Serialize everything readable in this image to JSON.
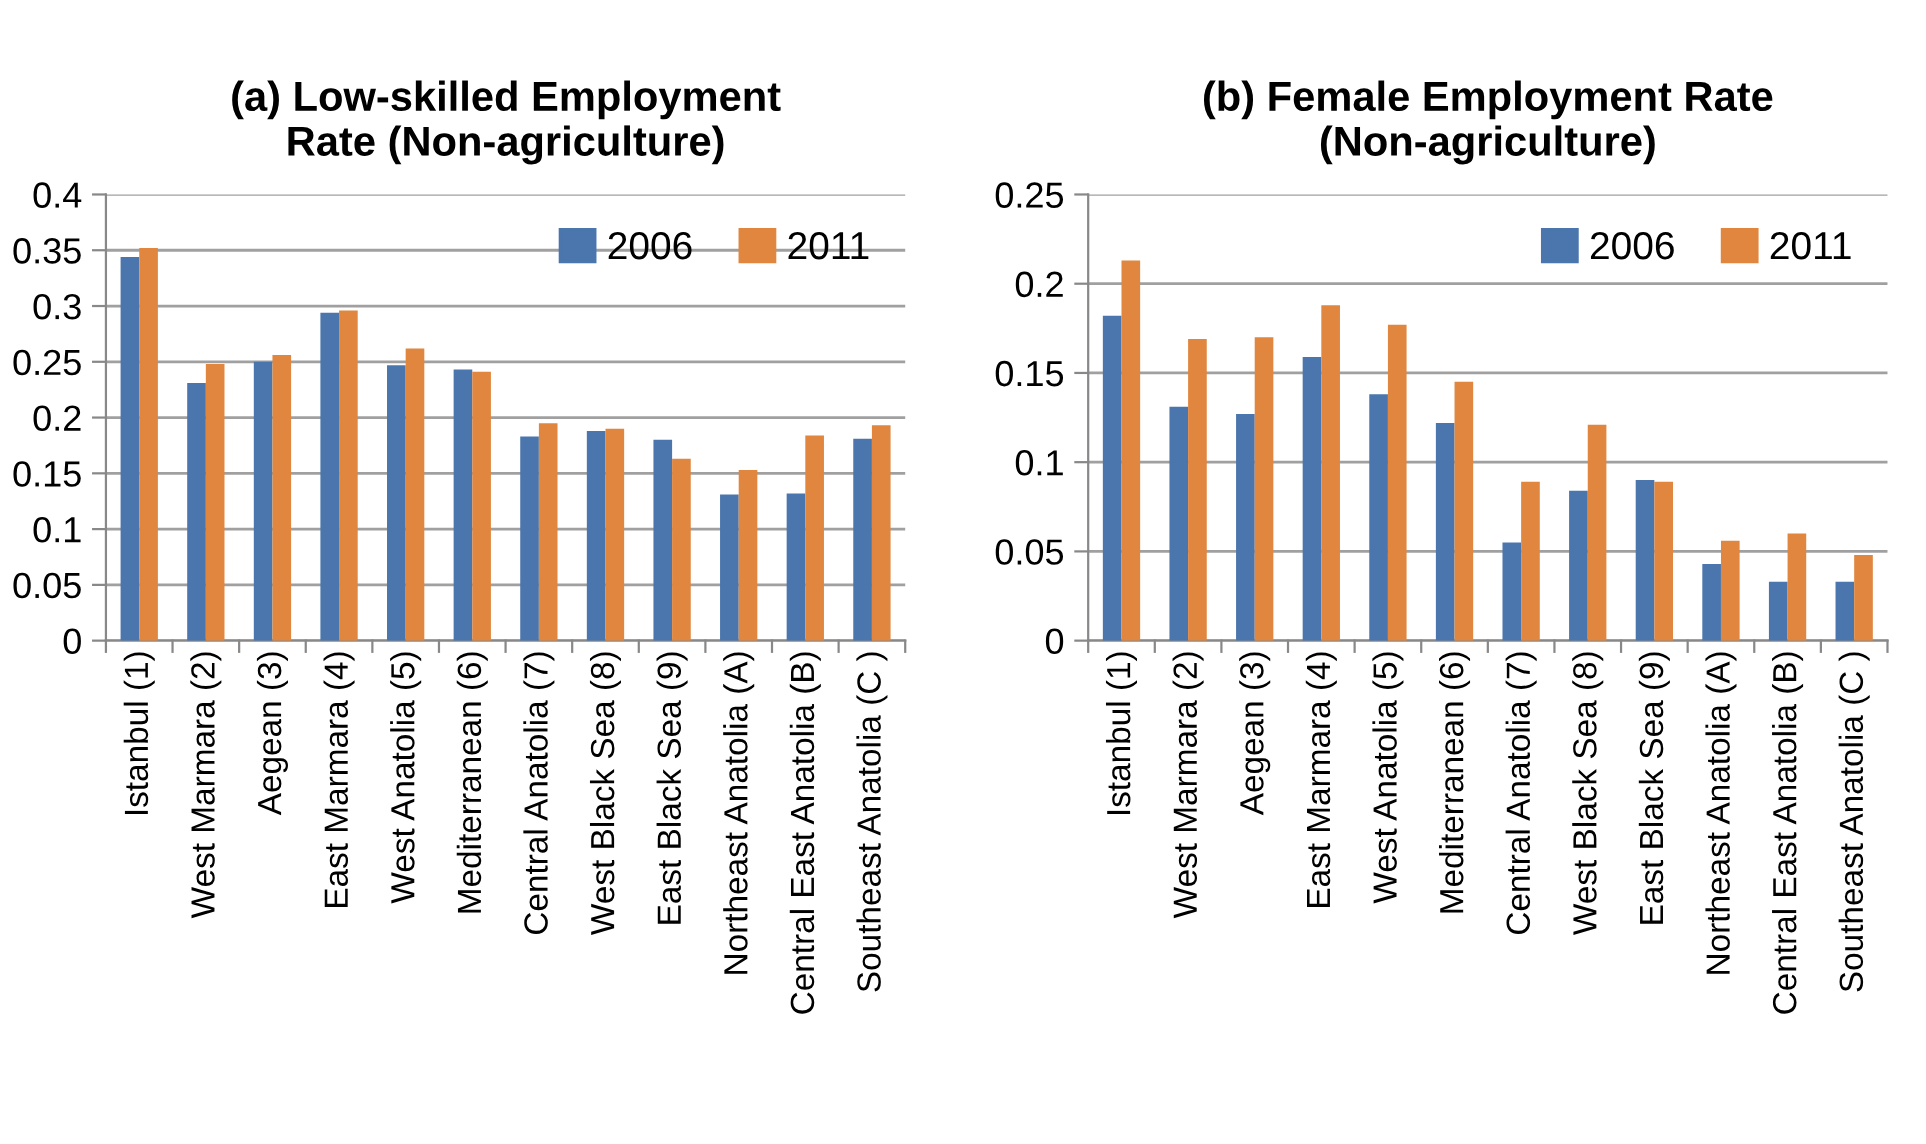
{
  "chart_data": [
    {
      "type": "bar",
      "title": "(a) Low-skilled Employment\nRate (Non-agriculture)",
      "categories": [
        "Istanbul (1)",
        "West Marmara (2)",
        "Aegean (3)",
        "East Marmara (4)",
        "West Anatolia (5)",
        "Mediterranean (6)",
        "Central Anatolia (7)",
        "West Black Sea (8)",
        "East Black Sea (9)",
        "Northeast Anatolia (A)",
        "Central East Anatolia (B)",
        "Southeast Anatolia (C )"
      ],
      "series": [
        {
          "name": "2006",
          "color": "#4a76ad",
          "values": [
            0.344,
            0.231,
            0.25,
            0.294,
            0.247,
            0.243,
            0.183,
            0.188,
            0.18,
            0.131,
            0.132,
            0.181
          ]
        },
        {
          "name": "2011",
          "color": "#e0863f",
          "values": [
            0.352,
            0.248,
            0.256,
            0.296,
            0.262,
            0.241,
            0.195,
            0.19,
            0.163,
            0.153,
            0.184,
            0.193
          ]
        }
      ],
      "ylim": [
        0,
        0.4
      ],
      "yticks": [
        0,
        0.05,
        0.1,
        0.15,
        0.2,
        0.25,
        0.3,
        0.35,
        0.4
      ],
      "grid": "y",
      "legend": "top right"
    },
    {
      "type": "bar",
      "title": "(b) Female Employment Rate\n(Non-agriculture)",
      "categories": [
        "Istanbul (1)",
        "West Marmara (2)",
        "Aegean (3)",
        "East Marmara (4)",
        "West Anatolia (5)",
        "Mediterranean (6)",
        "Central Anatolia (7)",
        "West Black Sea (8)",
        "East Black Sea (9)",
        "Northeast Anatolia (A)",
        "Central East Anatolia (B)",
        "Southeast Anatolia (C )"
      ],
      "series": [
        {
          "name": "2006",
          "color": "#4a76ad",
          "values": [
            0.182,
            0.131,
            0.127,
            0.159,
            0.138,
            0.122,
            0.055,
            0.084,
            0.09,
            0.043,
            0.033,
            0.033
          ]
        },
        {
          "name": "2011",
          "color": "#e0863f",
          "values": [
            0.213,
            0.169,
            0.17,
            0.188,
            0.177,
            0.145,
            0.089,
            0.121,
            0.089,
            0.056,
            0.06,
            0.048
          ]
        }
      ],
      "ylim": [
        0,
        0.25
      ],
      "yticks": [
        0,
        0.05,
        0.1,
        0.15,
        0.2,
        0.25
      ],
      "grid": "y",
      "legend": "top right"
    }
  ]
}
